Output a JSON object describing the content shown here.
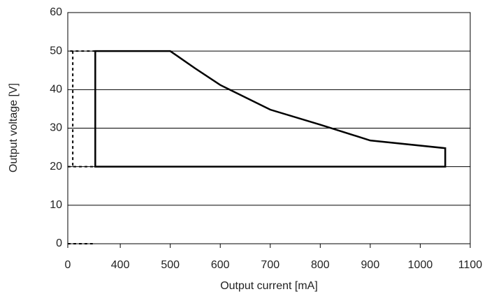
{
  "chart_data": {
    "type": "line",
    "xlabel": "Output current [mA]",
    "ylabel": "Output voltage [V]",
    "xlim": [
      0,
      1100
    ],
    "xbreak": [
      0,
      295
    ],
    "xticks": [
      0,
      400,
      500,
      600,
      700,
      800,
      900,
      1000,
      1100
    ],
    "ylim": [
      0,
      60
    ],
    "yticks": [
      0,
      10,
      20,
      30,
      40,
      50,
      60
    ],
    "grid": true,
    "series": [
      {
        "color": "#000000",
        "style": "solid",
        "closed": true,
        "x": [
          350,
          350,
          500,
          550,
          600,
          700,
          800,
          900,
          1050,
          1050
        ],
        "values": [
          20,
          50,
          50,
          45.5,
          41.2,
          34.8,
          30.9,
          26.8,
          24.8,
          20
        ]
      },
      {
        "color": "#000000",
        "style": "dashed",
        "closed": false,
        "x": [
          350,
          295,
          null,
          305,
          305,
          null,
          295,
          350,
          null,
          295,
          345
        ],
        "values": [
          50,
          50,
          null,
          50,
          20,
          null,
          20,
          20,
          null,
          0,
          0
        ]
      }
    ]
  }
}
